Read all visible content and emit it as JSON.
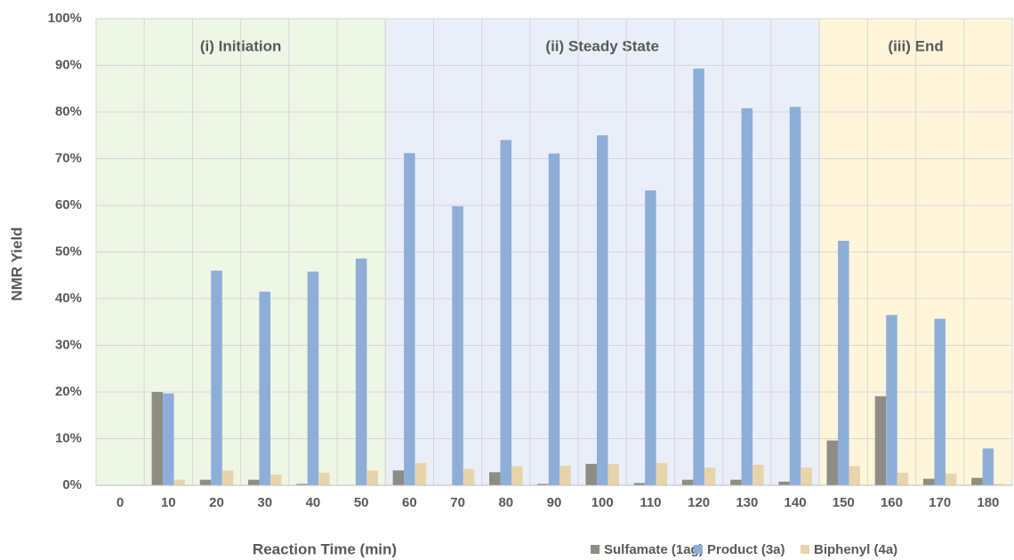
{
  "chart_data": {
    "type": "bar",
    "x_label": "Reaction Time (min)",
    "y_label": "NMR Yield",
    "categories": [
      "0",
      "10",
      "20",
      "30",
      "40",
      "50",
      "60",
      "70",
      "80",
      "90",
      "100",
      "110",
      "120",
      "130",
      "140",
      "150",
      "160",
      "170",
      "180"
    ],
    "series": [
      {
        "name": "Sulfamate (1ag)",
        "color": "#8d8d86",
        "values": [
          0,
          20,
          1.2,
          1.2,
          0.3,
          0,
          3.2,
          0,
          2.8,
          0.3,
          4.6,
          0.5,
          1.2,
          1.2,
          0.8,
          9.6,
          19.1,
          1.4,
          1.6
        ]
      },
      {
        "name": "Product (3a)",
        "color": "#8eaed8",
        "values": [
          0,
          19.7,
          46,
          41.5,
          45.8,
          48.6,
          71.2,
          59.8,
          74,
          71.1,
          75,
          63.2,
          89.3,
          80.8,
          81.1,
          52.4,
          36.5,
          35.7,
          7.9
        ]
      },
      {
        "name": "Biphenyl (4a)",
        "color": "#e8d4ab",
        "values": [
          0,
          1.2,
          3.2,
          2.3,
          2.7,
          3.2,
          4.8,
          3.5,
          4.1,
          4.2,
          4.6,
          4.8,
          3.8,
          4.4,
          3.8,
          4.1,
          2.7,
          2.5,
          0.3
        ]
      }
    ],
    "regions": [
      {
        "label": "(i) Initiation",
        "start": 0,
        "end": 50,
        "color": "#eef6e6"
      },
      {
        "label": "(ii) Steady State",
        "start": 60,
        "end": 140,
        "color": "#e9eef9"
      },
      {
        "label": "(iii) End",
        "start": 150,
        "end": 180,
        "color": "#fff5db"
      }
    ],
    "ylim": [
      0,
      100
    ],
    "yticks": [
      {
        "value": 0,
        "label": "0%"
      },
      {
        "value": 10,
        "label": "10%"
      },
      {
        "value": 20,
        "label": "20%"
      },
      {
        "value": 30,
        "label": "30%"
      },
      {
        "value": 40,
        "label": "40%"
      },
      {
        "value": 50,
        "label": "50%"
      },
      {
        "value": 60,
        "label": "60%"
      },
      {
        "value": 70,
        "label": "70%"
      },
      {
        "value": 80,
        "label": "80%"
      },
      {
        "value": 90,
        "label": "90%"
      },
      {
        "value": 100,
        "label": "100%"
      }
    ],
    "grid": true,
    "legend": "bottom-right"
  }
}
